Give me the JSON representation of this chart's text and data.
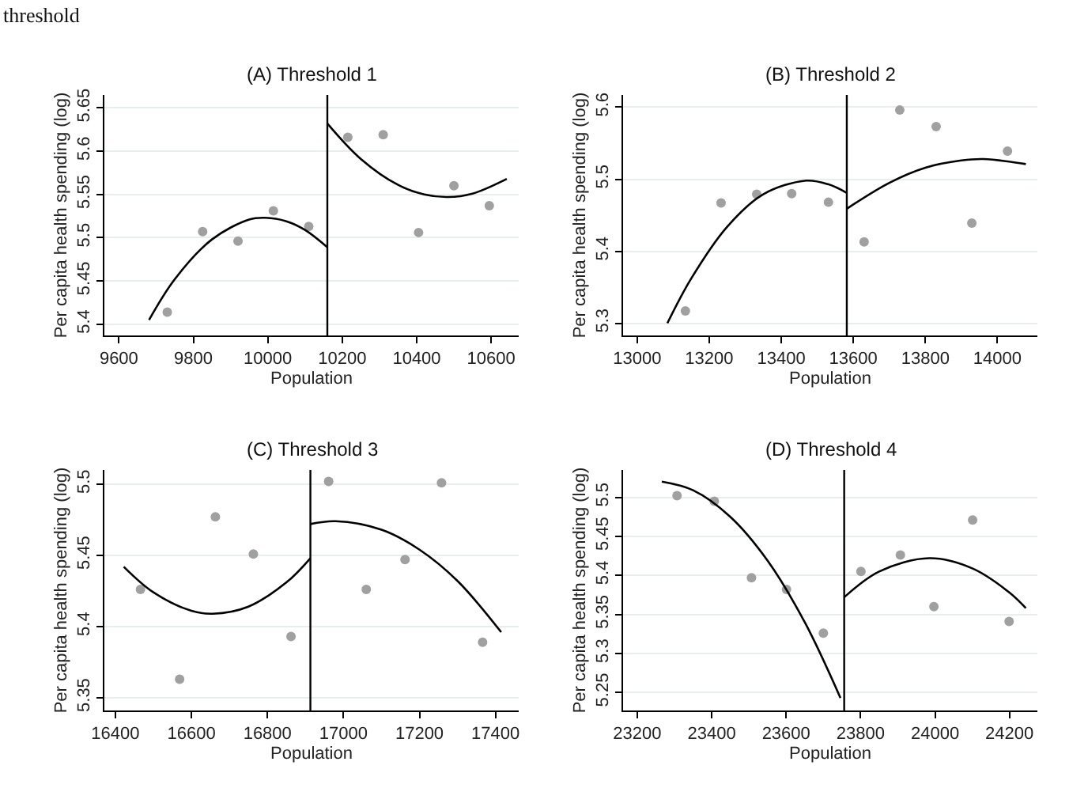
{
  "chart_data": [
    {
      "type": "scatter",
      "title": "(A) Threshold 1",
      "xlabel": "Population",
      "ylabel": "Per capita health spending (log)",
      "annotations": [
        "threshold"
      ],
      "xlim": [
        9561,
        10674
      ],
      "ylim": [
        5.387,
        5.665
      ],
      "xticks": [
        9600,
        9800,
        10000,
        10200,
        10400,
        10600
      ],
      "yticks": [
        5.4,
        5.45,
        5.5,
        5.55,
        5.6,
        5.65
      ],
      "grid": "y",
      "ref_lines": [
        {
          "axis": "x",
          "value": 10160,
          "color": "#000000"
        }
      ],
      "series": [
        {
          "marker": "circle",
          "color": "#a0a0a0",
          "x": [
            9730,
            9825,
            9920,
            10015,
            10110,
            10215,
            10310,
            10405,
            10500,
            10595
          ],
          "values": [
            5.414,
            5.507,
            5.496,
            5.531,
            5.513,
            5.616,
            5.619,
            5.506,
            5.56,
            5.537
          ]
        },
        {
          "type": "line",
          "color": "#000000",
          "x": [
            9681,
            9750,
            9850,
            9950,
            9993,
            10050,
            10100,
            10160
          ],
          "values": [
            5.405,
            5.452,
            5.498,
            5.521,
            5.523,
            5.519,
            5.509,
            5.489
          ]
        },
        {
          "type": "line",
          "color": "#000000",
          "x": [
            10160,
            10250,
            10350,
            10420,
            10483,
            10550,
            10642
          ],
          "values": [
            5.632,
            5.591,
            5.561,
            5.55,
            5.547,
            5.551,
            5.568
          ]
        }
      ]
    },
    {
      "type": "scatter",
      "title": "(B) Threshold 2",
      "xlabel": "Population",
      "ylabel": "Per capita health spending (log)",
      "xlim": [
        12961,
        14111
      ],
      "ylim": [
        5.283,
        5.617
      ],
      "xticks": [
        13000,
        13200,
        13400,
        13600,
        13800,
        14000
      ],
      "yticks": [
        5.3,
        5.4,
        5.5,
        5.6
      ],
      "grid": "y",
      "ref_lines": [
        {
          "axis": "x",
          "value": 13582,
          "color": "#000000"
        }
      ],
      "series": [
        {
          "marker": "circle",
          "color": "#a0a0a0",
          "x": [
            13134,
            13233,
            13332,
            13429,
            13531,
            13630,
            13729,
            13830,
            13929,
            14028
          ],
          "values": [
            5.317,
            5.467,
            5.479,
            5.48,
            5.468,
            5.413,
            5.596,
            5.573,
            5.439,
            5.539
          ]
        },
        {
          "type": "line",
          "color": "#000000",
          "x": [
            13084,
            13150,
            13250,
            13350,
            13469,
            13530,
            13582
          ],
          "values": [
            5.3,
            5.362,
            5.434,
            5.479,
            5.498,
            5.493,
            5.481
          ]
        },
        {
          "type": "line",
          "color": "#000000",
          "x": [
            13582,
            13700,
            13800,
            13900,
            13961,
            14079
          ],
          "values": [
            5.459,
            5.495,
            5.516,
            5.526,
            5.528,
            5.521
          ]
        }
      ]
    },
    {
      "type": "scatter",
      "title": "(C) Threshold 3",
      "xlabel": "Population",
      "ylabel": "Per capita health spending (log)",
      "xlim": [
        16371,
        17461
      ],
      "ylim": [
        5.341,
        5.51
      ],
      "xticks": [
        16400,
        16600,
        16800,
        17000,
        17200,
        17400
      ],
      "yticks": [
        5.35,
        5.4,
        5.45,
        5.5
      ],
      "grid": "y",
      "ref_lines": [
        {
          "axis": "x",
          "value": 16913,
          "color": "#000000"
        }
      ],
      "series": [
        {
          "marker": "circle",
          "color": "#a0a0a0",
          "x": [
            16466,
            16569,
            16663,
            16763,
            16862,
            16961,
            17060,
            17162,
            17258,
            17366
          ],
          "values": [
            5.426,
            5.363,
            5.477,
            5.451,
            5.393,
            5.502,
            5.426,
            5.447,
            5.501,
            5.389
          ]
        },
        {
          "type": "line",
          "color": "#000000",
          "x": [
            16422,
            16500,
            16600,
            16656,
            16750,
            16850,
            16913
          ],
          "values": [
            5.442,
            5.424,
            5.411,
            5.409,
            5.414,
            5.431,
            5.448
          ]
        },
        {
          "type": "line",
          "color": "#000000",
          "x": [
            16913,
            16979,
            17100,
            17200,
            17300,
            17415
          ],
          "values": [
            5.472,
            5.474,
            5.468,
            5.454,
            5.432,
            5.396
          ]
        }
      ]
    },
    {
      "type": "scatter",
      "title": "(D) Threshold 4",
      "xlabel": "Population",
      "ylabel": "Per capita health spending (log)",
      "xlim": [
        23162,
        24275
      ],
      "ylim": [
        5.227,
        5.535
      ],
      "xticks": [
        23200,
        23400,
        23600,
        23800,
        24000,
        24200
      ],
      "yticks": [
        5.25,
        5.3,
        5.35,
        5.4,
        5.45,
        5.5
      ],
      "grid": "y",
      "ref_lines": [
        {
          "axis": "x",
          "value": 23756,
          "color": "#000000"
        }
      ],
      "series": [
        {
          "marker": "circle",
          "color": "#a0a0a0",
          "x": [
            23307,
            23407,
            23507,
            23601,
            23700,
            23801,
            23907,
            23997,
            24101,
            24199
          ],
          "values": [
            5.502,
            5.495,
            5.397,
            5.382,
            5.326,
            5.405,
            5.426,
            5.36,
            5.471,
            5.341
          ]
        },
        {
          "type": "line",
          "color": "#000000",
          "x": [
            23266,
            23350,
            23450,
            23550,
            23650,
            23746
          ],
          "values": [
            5.52,
            5.509,
            5.475,
            5.419,
            5.34,
            5.243
          ]
        },
        {
          "type": "line",
          "color": "#000000",
          "x": [
            23756,
            23850,
            23985,
            24100,
            24200,
            24244
          ],
          "values": [
            5.372,
            5.405,
            5.422,
            5.409,
            5.378,
            5.358
          ]
        }
      ]
    }
  ]
}
